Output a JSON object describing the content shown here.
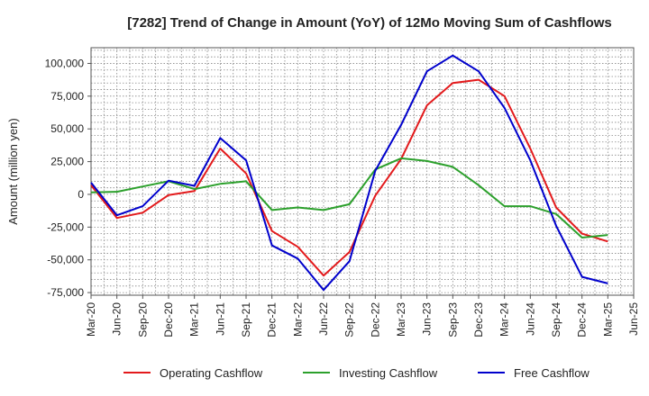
{
  "chart_data": {
    "type": "line",
    "title": "[7282]  Trend of Change in Amount (YoY) of 12Mo Moving Sum of Cashflows",
    "xlabel": "",
    "ylabel": "Amount (million yen)",
    "ylim": [
      -77000,
      112000
    ],
    "yticks": [
      -75000,
      -50000,
      -25000,
      0,
      25000,
      50000,
      75000,
      100000
    ],
    "ytick_labels": [
      "-75,000",
      "-50,000",
      "-25,000",
      "0",
      "25,000",
      "50,000",
      "75,000",
      "100,000"
    ],
    "categories": [
      "Mar-20",
      "Jun-20",
      "Sep-20",
      "Dec-20",
      "Mar-21",
      "Jun-21",
      "Sep-21",
      "Dec-21",
      "Mar-22",
      "Jun-22",
      "Sep-22",
      "Dec-22",
      "Mar-23",
      "Jun-23",
      "Sep-23",
      "Dec-23",
      "Mar-24",
      "Jun-24",
      "Sep-24",
      "Dec-24",
      "Mar-25",
      "Jun-25"
    ],
    "grid": true,
    "legend_position": "bottom",
    "series": [
      {
        "name": "Operating Cashflow",
        "color": "#e31a1c",
        "values": [
          7000,
          -18000,
          -14000,
          -500,
          2500,
          35000,
          16000,
          -28000,
          -40000,
          -62000,
          -44000,
          -1000,
          27000,
          68000,
          85000,
          87500,
          75000,
          35000,
          -10000,
          -30000,
          -36000,
          null
        ]
      },
      {
        "name": "Investing Cashflow",
        "color": "#2ca02c",
        "values": [
          1500,
          2000,
          6000,
          10000,
          4000,
          8000,
          10000,
          -12000,
          -10000,
          -12000,
          -7500,
          19000,
          27500,
          25500,
          21000,
          7000,
          -9000,
          -9000,
          -15000,
          -33000,
          -31000,
          null
        ]
      },
      {
        "name": "Free Cashflow",
        "color": "#0000cc",
        "values": [
          9000,
          -16000,
          -9000,
          10500,
          6500,
          43000,
          26000,
          -39000,
          -49000,
          -73000,
          -51000,
          18000,
          53000,
          94000,
          106000,
          94000,
          66000,
          26000,
          -24000,
          -63000,
          -68000,
          null
        ]
      }
    ]
  }
}
